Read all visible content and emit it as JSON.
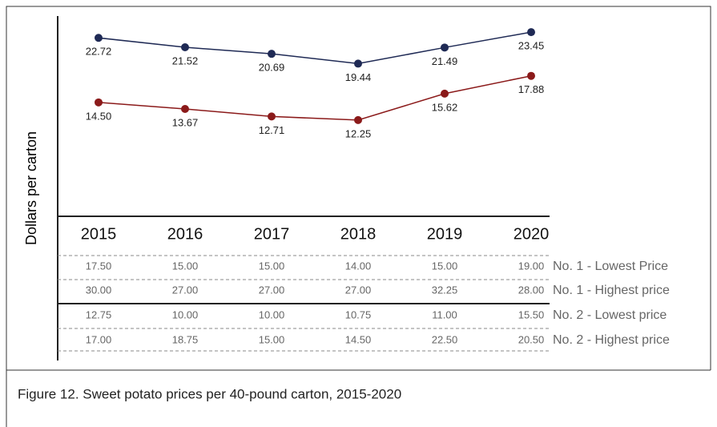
{
  "chart_data": {
    "type": "line",
    "categories": [
      "2015",
      "2016",
      "2017",
      "2018",
      "2019",
      "2020"
    ],
    "y_label": "Dollars per carton",
    "ylim": [
      0,
      25.5
    ],
    "series": [
      {
        "color": "#1f2a55",
        "values": [
          22.72,
          21.52,
          20.69,
          19.44,
          21.49,
          23.45
        ],
        "value_labels": [
          "22.72",
          "21.52",
          "20.69",
          "19.44",
          "21.49",
          "23.45"
        ]
      },
      {
        "color": "#8b1a1a",
        "values": [
          14.5,
          13.67,
          12.71,
          12.25,
          15.62,
          17.88
        ],
        "value_labels": [
          "14.50",
          "13.67",
          "12.71",
          "12.25",
          "15.62",
          "17.88"
        ]
      }
    ],
    "table": {
      "rows": [
        {
          "label": "No. 1 - Lowest Price",
          "values": [
            "17.50",
            "15.00",
            "15.00",
            "14.00",
            "15.00",
            "19.00"
          ]
        },
        {
          "label": "No. 1 - Highest price",
          "values": [
            "30.00",
            "27.00",
            "27.00",
            "27.00",
            "32.25",
            "28.00"
          ]
        },
        {
          "label": "No. 2 - Lowest price",
          "values": [
            "12.75",
            "10.00",
            "10.00",
            "10.75",
            "11.00",
            "15.50"
          ]
        },
        {
          "label": "No. 2 - Highest price",
          "values": [
            "17.00",
            "18.75",
            "15.00",
            "14.50",
            "22.50",
            "20.50"
          ]
        }
      ]
    }
  },
  "caption": "Figure 12. Sweet potato prices per 40-pound carton, 2015-2020"
}
